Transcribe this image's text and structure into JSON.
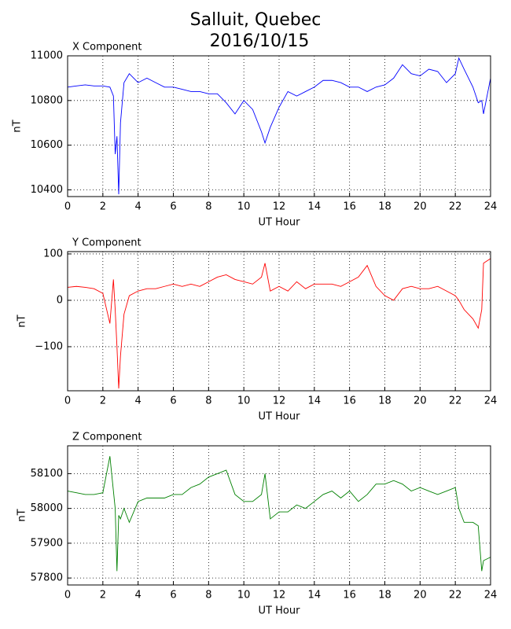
{
  "title": "Salluit, Quebec",
  "subtitle": "2016/10/15",
  "chart_data": [
    {
      "type": "line",
      "title": "X Component",
      "xlabel": "UT Hour",
      "ylabel": "nT",
      "color": "#0000ff",
      "grid": true,
      "xlim": [
        0,
        24
      ],
      "xticks": [
        0,
        2,
        4,
        6,
        8,
        10,
        12,
        14,
        16,
        18,
        20,
        22,
        24
      ],
      "ylim": [
        10370,
        11000
      ],
      "yticks": [
        10400,
        10600,
        10800,
        11000
      ],
      "x": [
        0,
        0.5,
        1,
        1.5,
        2,
        2.4,
        2.6,
        2.7,
        2.8,
        2.9,
        3.0,
        3.2,
        3.5,
        4,
        4.5,
        5,
        5.5,
        6,
        6.5,
        7,
        7.5,
        8,
        8.5,
        9,
        9.5,
        10,
        10.5,
        11,
        11.2,
        11.5,
        12,
        12.5,
        13,
        13.5,
        14,
        14.5,
        15,
        15.5,
        16,
        16.5,
        17,
        17.5,
        18,
        18.5,
        19,
        19.5,
        20,
        20.5,
        21,
        21.5,
        22,
        22.2,
        22.5,
        23,
        23.3,
        23.5,
        23.6,
        24
      ],
      "values": [
        10860,
        10865,
        10870,
        10865,
        10865,
        10860,
        10820,
        10560,
        10640,
        10380,
        10700,
        10880,
        10920,
        10880,
        10900,
        10880,
        10860,
        10860,
        10850,
        10840,
        10840,
        10830,
        10830,
        10790,
        10740,
        10800,
        10760,
        10660,
        10610,
        10680,
        10770,
        10840,
        10820,
        10840,
        10860,
        10890,
        10890,
        10880,
        10860,
        10860,
        10840,
        10860,
        10870,
        10900,
        10960,
        10920,
        10910,
        10940,
        10930,
        10880,
        10920,
        10990,
        10940,
        10860,
        10790,
        10800,
        10740,
        10900
      ]
    },
    {
      "type": "line",
      "title": "Y Component",
      "xlabel": "UT Hour",
      "ylabel": "nT",
      "color": "#ff0000",
      "grid": true,
      "xlim": [
        0,
        24
      ],
      "xticks": [
        0,
        2,
        4,
        6,
        8,
        10,
        12,
        14,
        16,
        18,
        20,
        22,
        24
      ],
      "ylim": [
        -195,
        105
      ],
      "yticks": [
        {
          "value": -100,
          "label": "−100"
        },
        0,
        100
      ],
      "x": [
        0,
        0.5,
        1,
        1.5,
        2,
        2.4,
        2.6,
        2.7,
        2.8,
        2.9,
        3.0,
        3.2,
        3.5,
        4,
        4.5,
        5,
        5.5,
        6,
        6.5,
        7,
        7.5,
        8,
        8.5,
        9,
        9.5,
        10,
        10.5,
        11,
        11.2,
        11.5,
        12,
        12.5,
        13,
        13.5,
        14,
        14.5,
        15,
        15.5,
        16,
        16.5,
        17,
        17.5,
        18,
        18.5,
        19,
        19.5,
        20,
        20.5,
        21,
        21.5,
        22,
        22.2,
        22.5,
        23,
        23.3,
        23.5,
        23.6,
        24
      ],
      "values": [
        28,
        30,
        28,
        25,
        15,
        -50,
        45,
        -20,
        -100,
        -190,
        -120,
        -30,
        10,
        20,
        25,
        25,
        30,
        35,
        30,
        35,
        30,
        40,
        50,
        55,
        45,
        40,
        35,
        50,
        80,
        20,
        30,
        20,
        40,
        25,
        35,
        35,
        35,
        30,
        40,
        50,
        75,
        30,
        10,
        0,
        25,
        30,
        25,
        25,
        30,
        20,
        10,
        0,
        -20,
        -40,
        -60,
        -20,
        80,
        90
      ]
    },
    {
      "type": "line",
      "title": "Z Component",
      "xlabel": "UT Hour",
      "ylabel": "nT",
      "color": "#008000",
      "grid": true,
      "xlim": [
        0,
        24
      ],
      "xticks": [
        0,
        2,
        4,
        6,
        8,
        10,
        12,
        14,
        16,
        18,
        20,
        22,
        24
      ],
      "ylim": [
        57780,
        58180
      ],
      "yticks": [
        57800,
        57900,
        58000,
        58100
      ],
      "x": [
        0,
        0.5,
        1,
        1.5,
        2,
        2.4,
        2.6,
        2.7,
        2.8,
        2.9,
        3.0,
        3.2,
        3.5,
        4,
        4.5,
        5,
        5.5,
        6,
        6.5,
        7,
        7.5,
        8,
        8.5,
        9,
        9.5,
        10,
        10.5,
        11,
        11.2,
        11.5,
        12,
        12.5,
        13,
        13.5,
        14,
        14.5,
        15,
        15.5,
        16,
        16.5,
        17,
        17.5,
        18,
        18.5,
        19,
        19.5,
        20,
        20.5,
        21,
        21.5,
        22,
        22.2,
        22.5,
        23,
        23.3,
        23.5,
        23.6,
        24
      ],
      "values": [
        58050,
        58045,
        58040,
        58040,
        58045,
        58150,
        58050,
        58000,
        57820,
        57980,
        57970,
        58000,
        57960,
        58020,
        58030,
        58030,
        58030,
        58040,
        58040,
        58060,
        58070,
        58090,
        58100,
        58110,
        58040,
        58020,
        58020,
        58040,
        58100,
        57970,
        57990,
        57990,
        58010,
        58000,
        58020,
        58040,
        58050,
        58030,
        58050,
        58020,
        58040,
        58070,
        58070,
        58080,
        58070,
        58050,
        58060,
        58050,
        58040,
        58050,
        58060,
        58000,
        57960,
        57960,
        57950,
        57820,
        57850,
        57860
      ]
    }
  ]
}
